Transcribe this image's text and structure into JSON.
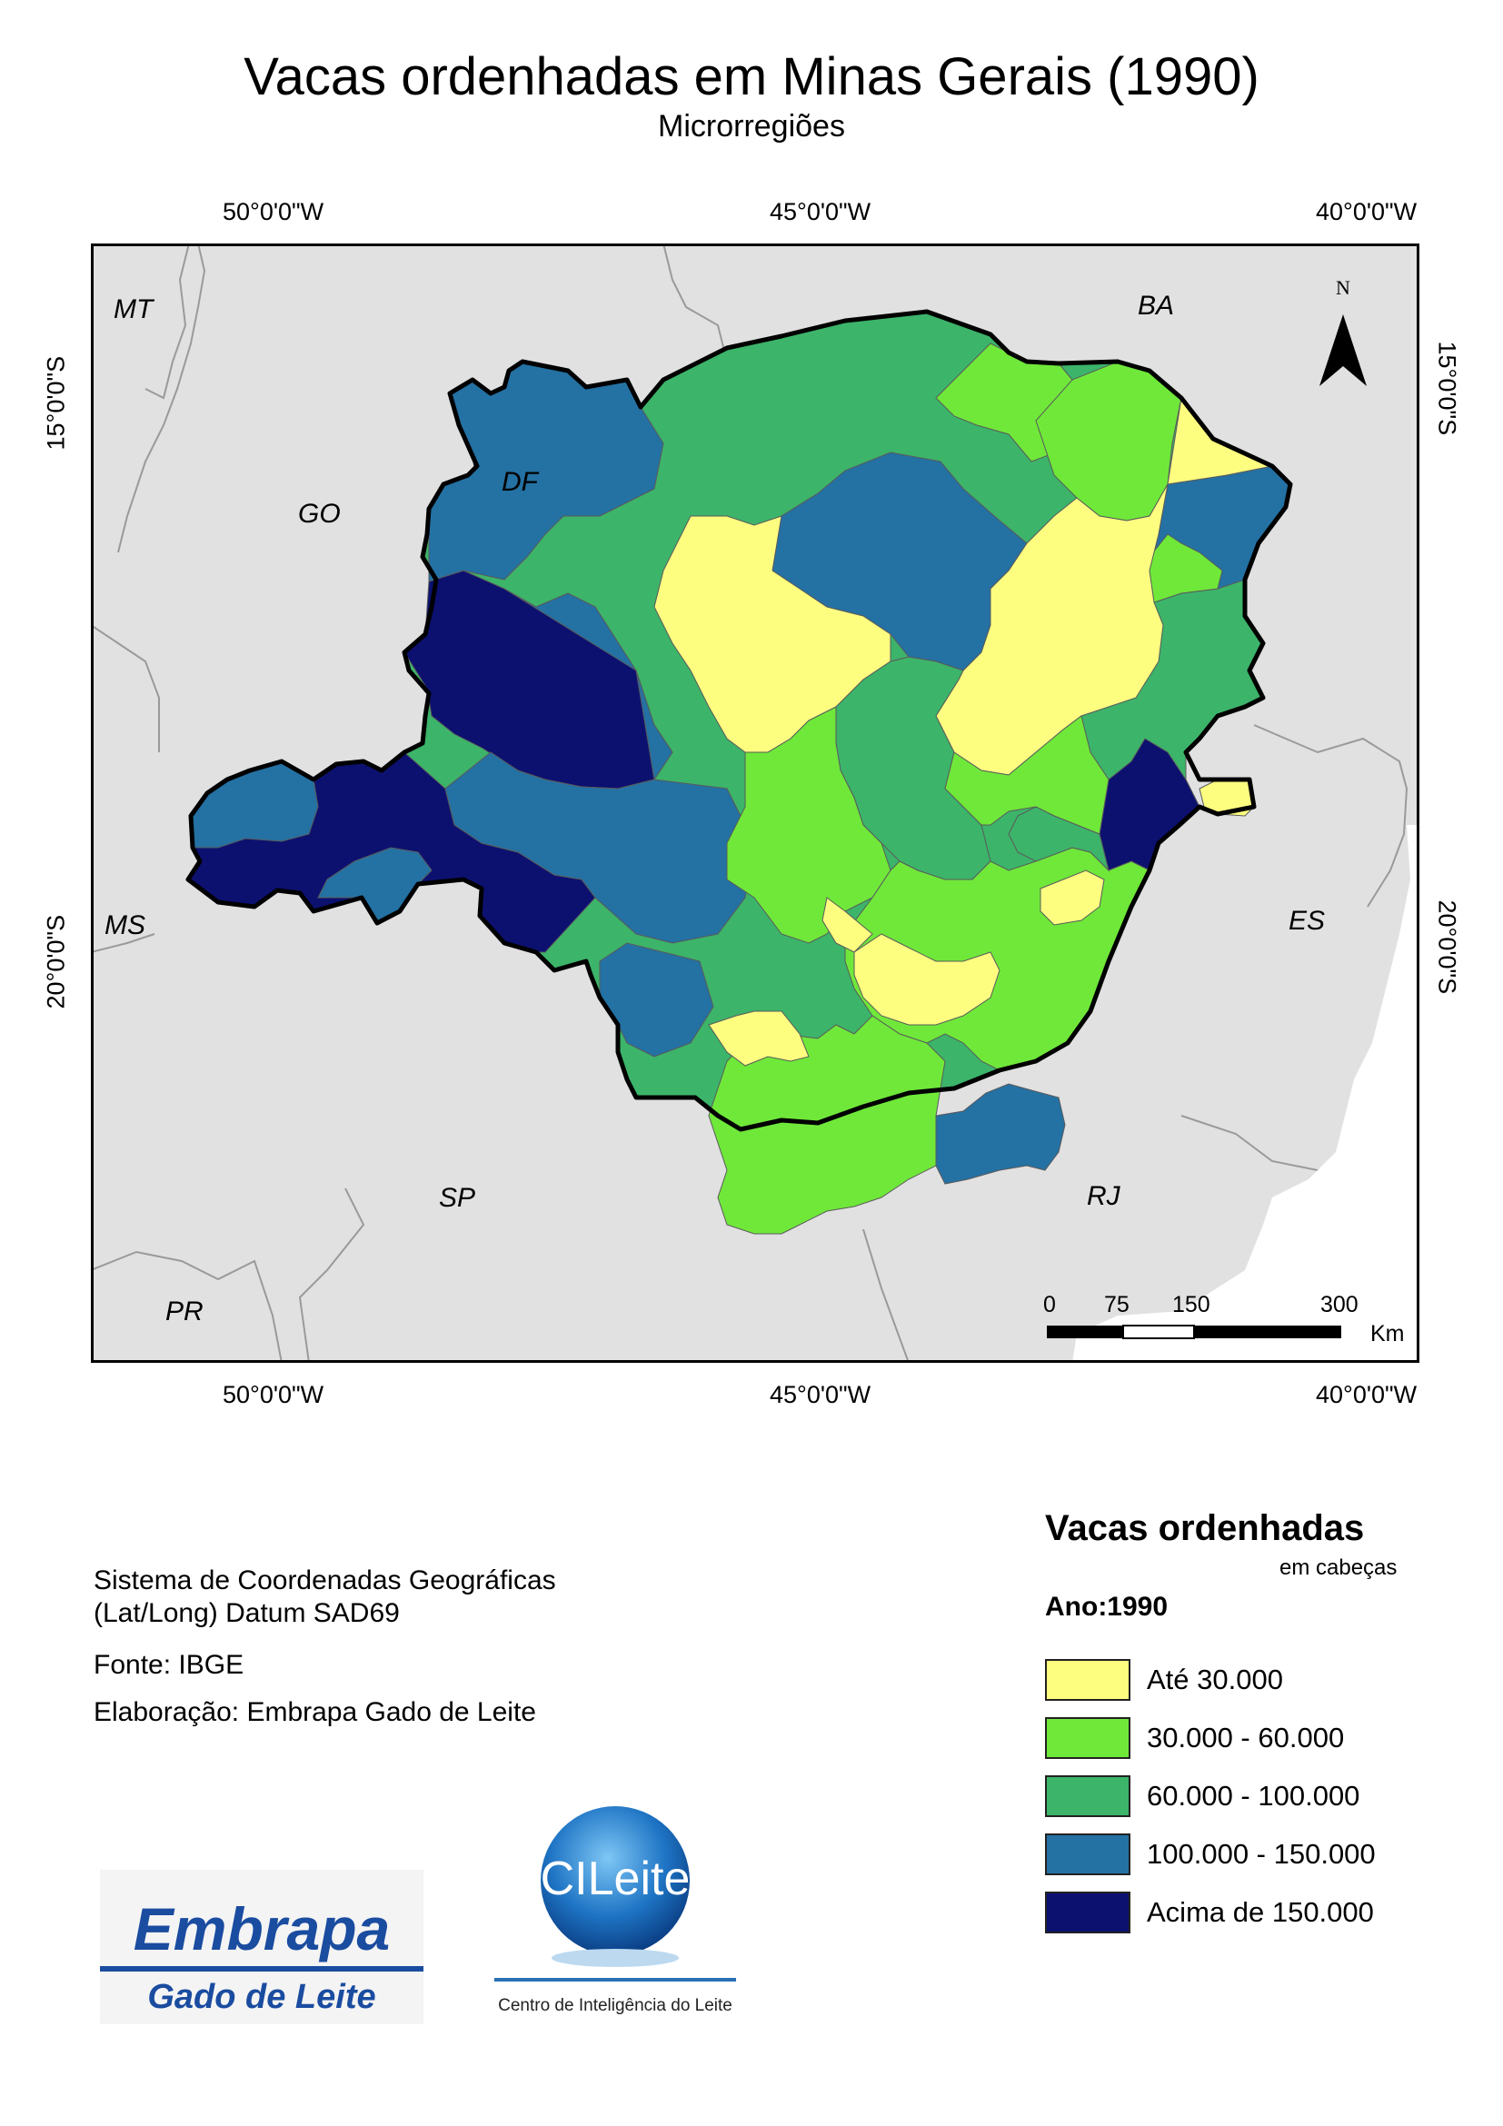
{
  "title": "Vacas ordenhadas em Minas Gerais (1990)",
  "subtitle": "Microrregiões",
  "coords": {
    "lon": [
      "50°0'0\"W",
      "45°0'0\"W",
      "40°0'0\"W"
    ],
    "lat": [
      "15°0'0\"S",
      "20°0'0\"S"
    ]
  },
  "states": {
    "MT": "MT",
    "GO": "GO",
    "DF": "DF",
    "BA": "BA",
    "MS": "MS",
    "ES": "ES",
    "SP": "SP",
    "RJ": "RJ",
    "PR": "PR"
  },
  "north_label": "N",
  "scale": {
    "ticks": [
      "0",
      "75",
      "150",
      "300"
    ],
    "unit": "Km"
  },
  "info": {
    "crs_line1": "Sistema de Coordenadas Geográficas",
    "crs_line2": "(Lat/Long) Datum SAD69",
    "source": "Fonte: IBGE",
    "author": "Elaboração: Embrapa Gado de Leite"
  },
  "legend": {
    "title": "Vacas ordenhadas",
    "unit": "em cabeças",
    "year": "Ano:1990",
    "classes": [
      {
        "label": "Até 30.000",
        "color": "#fdfd80"
      },
      {
        "label": "30.000 - 60.000",
        "color": "#6fe83a"
      },
      {
        "label": "60.000 - 100.000",
        "color": "#3cb46a"
      },
      {
        "label": "100.000 - 150.000",
        "color": "#2471a3"
      },
      {
        "label": "Acima de 150.000",
        "color": "#0c1170"
      }
    ]
  },
  "logos": {
    "embrapa_name": "Embrapa",
    "embrapa_sub": "Gado de Leite",
    "cileite_name": "CILeite",
    "cileite_sub": "Centro de Inteligência do Leite"
  },
  "colors": {
    "background_land": "#e1e1e1",
    "border": "#000000"
  }
}
